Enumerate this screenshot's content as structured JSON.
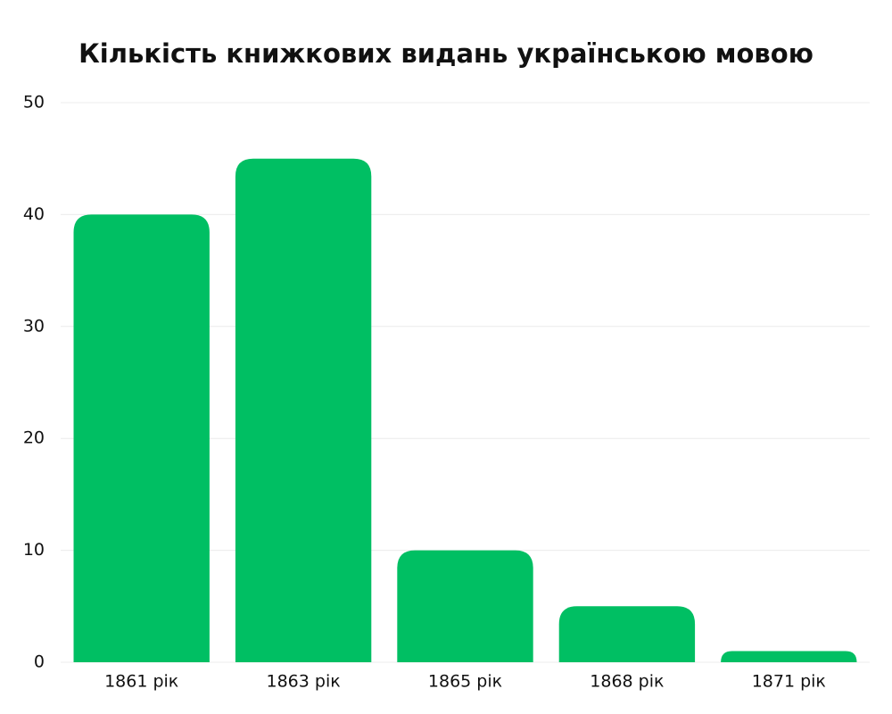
{
  "chart_data": {
    "type": "bar",
    "title": "Кількість книжкових видань українською мовою",
    "categories": [
      "1861 рік",
      "1863 рік",
      "1865 рік",
      "1868 рік",
      "1871 рік"
    ],
    "values": [
      40,
      45,
      10,
      5,
      1
    ],
    "color": "#00bf63",
    "ylim": [
      0,
      50
    ],
    "yticks": [
      0,
      10,
      20,
      30,
      40,
      50
    ],
    "grid": true
  }
}
